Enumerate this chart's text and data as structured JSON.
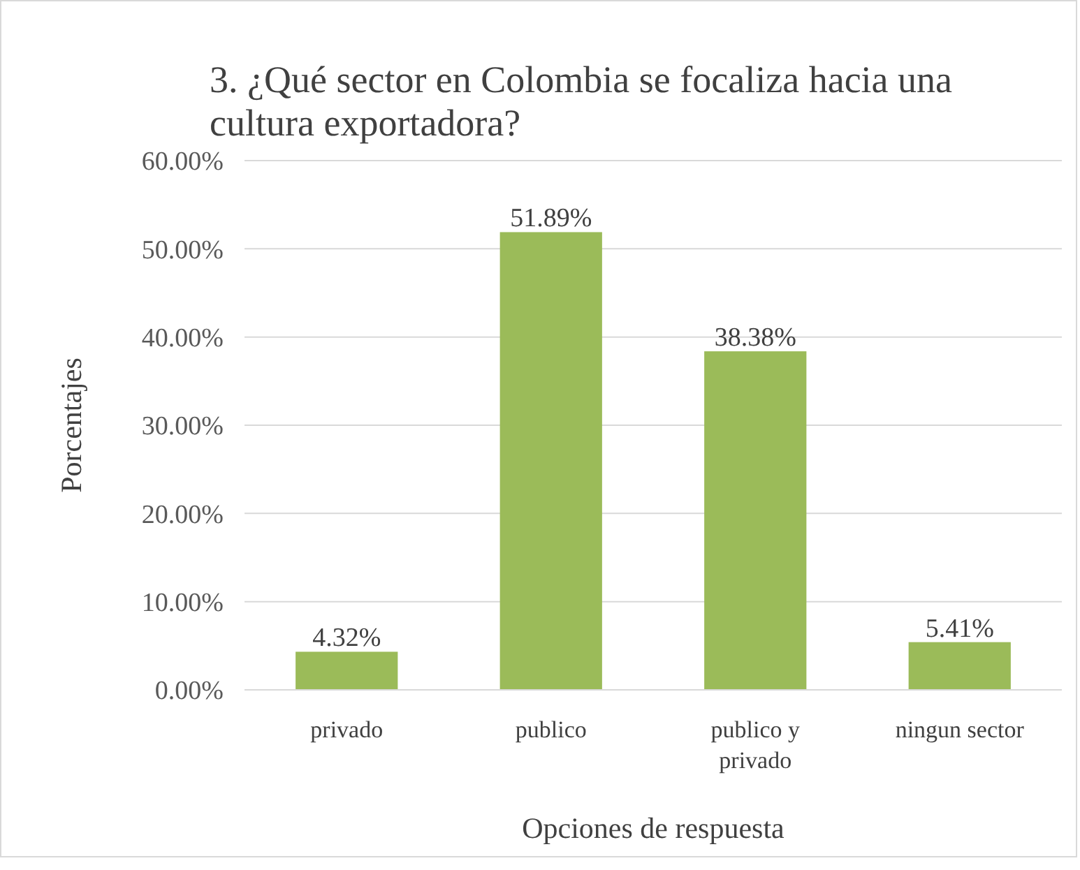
{
  "chart_data": {
    "type": "bar",
    "title": "3. ¿Qué sector en Colombia se focaliza hacia una cultura exportadora?",
    "xlabel": "Opciones de respuesta",
    "ylabel": "Porcentajes",
    "categories": [
      "privado",
      "publico",
      "publico y privado",
      "ningun sector"
    ],
    "values": [
      4.32,
      51.89,
      38.38,
      5.41
    ],
    "value_labels": [
      "4.32%",
      "51.89%",
      "38.38%",
      "5.41%"
    ],
    "color": "#9bbb59",
    "ylim": [
      0,
      60
    ],
    "yticks": [
      {
        "value": 0,
        "label": "0.00%"
      },
      {
        "value": 10,
        "label": "10.00%"
      },
      {
        "value": 20,
        "label": "20.00%"
      },
      {
        "value": 30,
        "label": "30.00%"
      },
      {
        "value": 40,
        "label": "40.00%"
      },
      {
        "value": 50,
        "label": "50.00%"
      },
      {
        "value": 60,
        "label": "60.00%"
      }
    ],
    "grid": "y"
  }
}
